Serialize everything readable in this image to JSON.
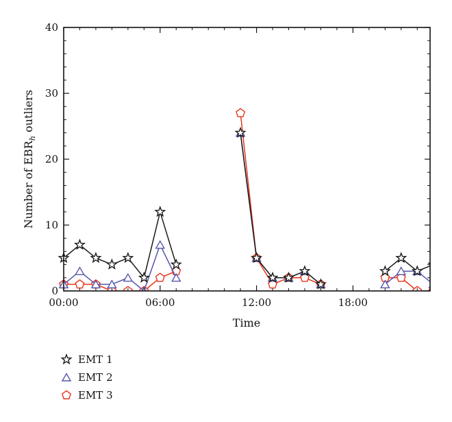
{
  "chart_data": {
    "type": "line",
    "xlabel": "Time",
    "ylabel": "Number of EBR",
    "ylabel_subscript": "h",
    "ylabel_suffix": " outliers",
    "xlim": [
      0,
      22.8
    ],
    "ylim": [
      0,
      40
    ],
    "x_ticks": [
      {
        "value": 0,
        "label": "00:00"
      },
      {
        "value": 6,
        "label": "06:00"
      },
      {
        "value": 12,
        "label": "12:00"
      },
      {
        "value": 18,
        "label": "18:00"
      }
    ],
    "y_ticks": [
      {
        "value": 0,
        "label": "0"
      },
      {
        "value": 10,
        "label": "10"
      },
      {
        "value": 20,
        "label": "20"
      },
      {
        "value": 30,
        "label": "30"
      },
      {
        "value": 40,
        "label": "40"
      }
    ],
    "grid": false,
    "legend_position": "bottom-left",
    "series": [
      {
        "name": "EMT 1",
        "color": "#1a1a1a",
        "marker": "star",
        "segments": [
          [
            [
              0,
              5
            ],
            [
              1,
              7
            ],
            [
              2,
              5
            ],
            [
              3,
              4
            ],
            [
              4,
              5
            ],
            [
              5,
              2
            ],
            [
              6,
              12
            ],
            [
              7,
              4
            ]
          ],
          [
            [
              11,
              24
            ],
            [
              12,
              5
            ],
            [
              13,
              2
            ],
            [
              14,
              2
            ],
            [
              15,
              3
            ],
            [
              16,
              1
            ]
          ],
          [
            [
              20,
              3
            ],
            [
              21,
              5
            ],
            [
              22,
              3
            ],
            [
              23,
              4
            ]
          ]
        ]
      },
      {
        "name": "EMT 2",
        "color": "#5555aa",
        "marker": "triangle",
        "segments": [
          [
            [
              0,
              1
            ],
            [
              1,
              3
            ],
            [
              2,
              1
            ],
            [
              3,
              1
            ],
            [
              4,
              2
            ],
            [
              5,
              0
            ],
            [
              6,
              7
            ],
            [
              7,
              2
            ]
          ],
          [
            [
              11,
              24
            ],
            [
              12,
              5
            ],
            [
              13,
              2
            ],
            [
              14,
              2
            ],
            [
              15,
              3
            ],
            [
              16,
              1
            ]
          ],
          [
            [
              20,
              1
            ],
            [
              21,
              3
            ],
            [
              22,
              3
            ],
            [
              23,
              1
            ]
          ]
        ]
      },
      {
        "name": "EMT 3",
        "color": "#e8341c",
        "marker": "pentagon",
        "segments": [
          [
            [
              0,
              1
            ],
            [
              1,
              1
            ],
            [
              2,
              1
            ],
            [
              3,
              0
            ],
            [
              4,
              0
            ],
            [
              5,
              0
            ],
            [
              6,
              2
            ],
            [
              7,
              3
            ]
          ],
          [
            [
              11,
              27
            ],
            [
              12,
              5
            ],
            [
              13,
              1
            ],
            [
              14,
              2
            ],
            [
              15,
              2
            ],
            [
              16,
              1
            ]
          ],
          [
            [
              20,
              2
            ],
            [
              21,
              2
            ],
            [
              22,
              0
            ],
            [
              23,
              0
            ]
          ]
        ]
      }
    ]
  }
}
